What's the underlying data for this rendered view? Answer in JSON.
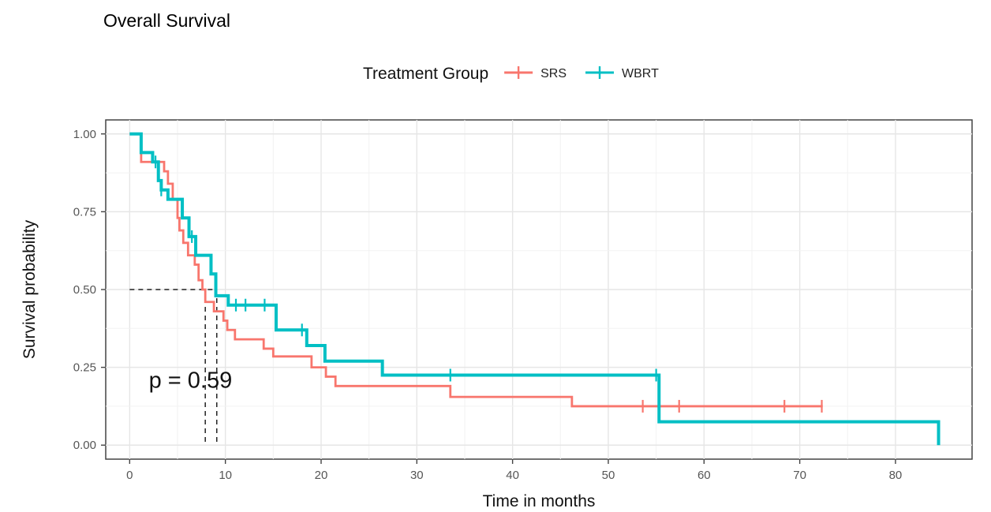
{
  "chart_data": {
    "type": "line",
    "subtype": "kaplan-meier step",
    "title": "Overall Survival",
    "xlabel": "Time in months",
    "ylabel": "Survival probability",
    "xlim": [
      -2.5,
      88
    ],
    "ylim": [
      -0.045,
      1.045
    ],
    "x_ticks": [
      0,
      10,
      20,
      30,
      40,
      50,
      60,
      70,
      80
    ],
    "x_tick_labels": [
      "0",
      "10",
      "20",
      "30",
      "40",
      "50",
      "60",
      "70",
      "80"
    ],
    "y_ticks": [
      0,
      0.25,
      0.5,
      0.75,
      1
    ],
    "y_tick_labels": [
      "0.00",
      "0.25",
      "0.50",
      "0.75",
      "1.00"
    ],
    "grid": true,
    "legend": {
      "title": "Treatment Group",
      "position": "top",
      "entries": [
        "SRS",
        "WBRT"
      ]
    },
    "annotation": "p = 0.59",
    "annotation_at": [
      2,
      0.185
    ],
    "median_lines": {
      "y": 0.5,
      "x": [
        7.9,
        9.1
      ]
    },
    "series": [
      {
        "name": "SRS",
        "color": "#F8766D",
        "points": [
          [
            0,
            1.0
          ],
          [
            1.2,
            0.91
          ],
          [
            3.2,
            0.91
          ],
          [
            3.6,
            0.88
          ],
          [
            4.0,
            0.84
          ],
          [
            4.5,
            0.79
          ],
          [
            5.0,
            0.73
          ],
          [
            5.2,
            0.69
          ],
          [
            5.6,
            0.65
          ],
          [
            6.1,
            0.61
          ],
          [
            6.8,
            0.58
          ],
          [
            7.2,
            0.53
          ],
          [
            7.6,
            0.5
          ],
          [
            7.9,
            0.46
          ],
          [
            8.8,
            0.43
          ],
          [
            9.8,
            0.4
          ],
          [
            10.2,
            0.37
          ],
          [
            11.0,
            0.34
          ],
          [
            14.0,
            0.31
          ],
          [
            15.0,
            0.285
          ],
          [
            19.0,
            0.25
          ],
          [
            20.5,
            0.22
          ],
          [
            21.5,
            0.19
          ],
          [
            33.5,
            0.155
          ],
          [
            46.2,
            0.125
          ],
          [
            72.4,
            0.125
          ]
        ],
        "censor_x": [
          53.6,
          57.4,
          68.4,
          72.3
        ]
      },
      {
        "name": "WBRT",
        "color": "#00BFC4",
        "points": [
          [
            0,
            1.0
          ],
          [
            1.2,
            0.94
          ],
          [
            2.4,
            0.91
          ],
          [
            3.0,
            0.85
          ],
          [
            3.3,
            0.82
          ],
          [
            4.0,
            0.79
          ],
          [
            5.5,
            0.73
          ],
          [
            6.2,
            0.67
          ],
          [
            6.9,
            0.61
          ],
          [
            8.5,
            0.55
          ],
          [
            9.0,
            0.48
          ],
          [
            10.3,
            0.45
          ],
          [
            15.3,
            0.37
          ],
          [
            18.5,
            0.32
          ],
          [
            20.4,
            0.27
          ],
          [
            26.4,
            0.225
          ],
          [
            55.3,
            0.075
          ],
          [
            84.5,
            0.075
          ],
          [
            84.5,
            0.0
          ]
        ],
        "censor_x": [
          2.7,
          3.3,
          6.5,
          11.1,
          12.1,
          14.1,
          18.0,
          33.5,
          55.0
        ]
      }
    ]
  }
}
